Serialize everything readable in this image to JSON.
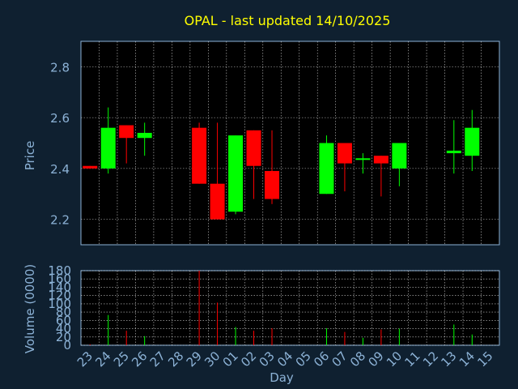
{
  "colors": {
    "background": "#0f2030",
    "plot_background": "#000000",
    "frame": "#8cb2d6",
    "axis_text": "#8cb2d6",
    "title": "#ffff00",
    "grid": "#ffffff",
    "up": "#00ff00",
    "down": "#ff0000"
  },
  "chart_data": [
    {
      "type": "candlestick",
      "title": "OPAL - last updated 14/10/2025",
      "ylabel": "Price",
      "xlabel": "",
      "ylim": [
        2.1,
        2.9
      ],
      "yticks": [
        "2.2",
        "2.4",
        "2.6",
        "2.8"
      ],
      "grid": true,
      "categories": [
        "23",
        "24",
        "25",
        "26",
        "27",
        "28",
        "29",
        "30",
        "01",
        "02",
        "03",
        "04",
        "05",
        "06",
        "07",
        "08",
        "09",
        "10",
        "11",
        "12",
        "13",
        "14",
        "15"
      ],
      "candles": [
        {
          "x": "23",
          "open": 2.41,
          "close": 2.4,
          "high": 2.41,
          "low": 2.4
        },
        {
          "x": "24",
          "open": 2.4,
          "close": 2.56,
          "high": 2.64,
          "low": 2.38
        },
        {
          "x": "25",
          "open": 2.57,
          "close": 2.52,
          "high": 2.57,
          "low": 2.42
        },
        {
          "x": "26",
          "open": 2.52,
          "close": 2.54,
          "high": 2.58,
          "low": 2.45
        },
        {
          "x": "29",
          "open": 2.56,
          "close": 2.34,
          "high": 2.58,
          "low": 2.34
        },
        {
          "x": "30",
          "open": 2.34,
          "close": 2.2,
          "high": 2.58,
          "low": 2.2
        },
        {
          "x": "01",
          "open": 2.23,
          "close": 2.53,
          "high": 2.53,
          "low": 2.22
        },
        {
          "x": "02",
          "open": 2.55,
          "close": 2.41,
          "high": 2.55,
          "low": 2.28
        },
        {
          "x": "03",
          "open": 2.39,
          "close": 2.28,
          "high": 2.55,
          "low": 2.26
        },
        {
          "x": "06",
          "open": 2.3,
          "close": 2.5,
          "high": 2.53,
          "low": 2.3
        },
        {
          "x": "07",
          "open": 2.5,
          "close": 2.42,
          "high": 2.5,
          "low": 2.31
        },
        {
          "x": "08",
          "open": 2.44,
          "close": 2.44,
          "high": 2.46,
          "low": 2.38
        },
        {
          "x": "09",
          "open": 2.45,
          "close": 2.42,
          "high": 2.45,
          "low": 2.29
        },
        {
          "x": "10",
          "open": 2.4,
          "close": 2.5,
          "high": 2.5,
          "low": 2.33
        },
        {
          "x": "13",
          "open": 2.46,
          "close": 2.47,
          "high": 2.59,
          "low": 2.38
        },
        {
          "x": "14",
          "open": 2.45,
          "close": 2.56,
          "high": 2.63,
          "low": 2.39
        }
      ]
    },
    {
      "type": "bar",
      "ylabel": "Volume (0000)",
      "xlabel": "Day",
      "ylim": [
        0,
        180
      ],
      "yticks": [
        "0",
        "20",
        "40",
        "60",
        "80",
        "100",
        "120",
        "140",
        "160",
        "180"
      ],
      "grid": true,
      "categories": [
        "23",
        "24",
        "25",
        "26",
        "27",
        "28",
        "29",
        "30",
        "01",
        "02",
        "03",
        "04",
        "05",
        "06",
        "07",
        "08",
        "09",
        "10",
        "11",
        "12",
        "13",
        "14",
        "15"
      ],
      "values": [
        {
          "x": "23",
          "value": 2,
          "direction": "down"
        },
        {
          "x": "24",
          "value": 73,
          "direction": "up"
        },
        {
          "x": "25",
          "value": 35,
          "direction": "down"
        },
        {
          "x": "26",
          "value": 22,
          "direction": "up"
        },
        {
          "x": "29",
          "value": 180,
          "direction": "down"
        },
        {
          "x": "30",
          "value": 103,
          "direction": "down"
        },
        {
          "x": "01",
          "value": 44,
          "direction": "up"
        },
        {
          "x": "02",
          "value": 35,
          "direction": "down"
        },
        {
          "x": "03",
          "value": 41,
          "direction": "down"
        },
        {
          "x": "06",
          "value": 41,
          "direction": "up"
        },
        {
          "x": "07",
          "value": 32,
          "direction": "down"
        },
        {
          "x": "08",
          "value": 18,
          "direction": "up"
        },
        {
          "x": "09",
          "value": 38,
          "direction": "down"
        },
        {
          "x": "10",
          "value": 40,
          "direction": "up"
        },
        {
          "x": "13",
          "value": 50,
          "direction": "up"
        },
        {
          "x": "14",
          "value": 26,
          "direction": "up"
        }
      ]
    }
  ]
}
